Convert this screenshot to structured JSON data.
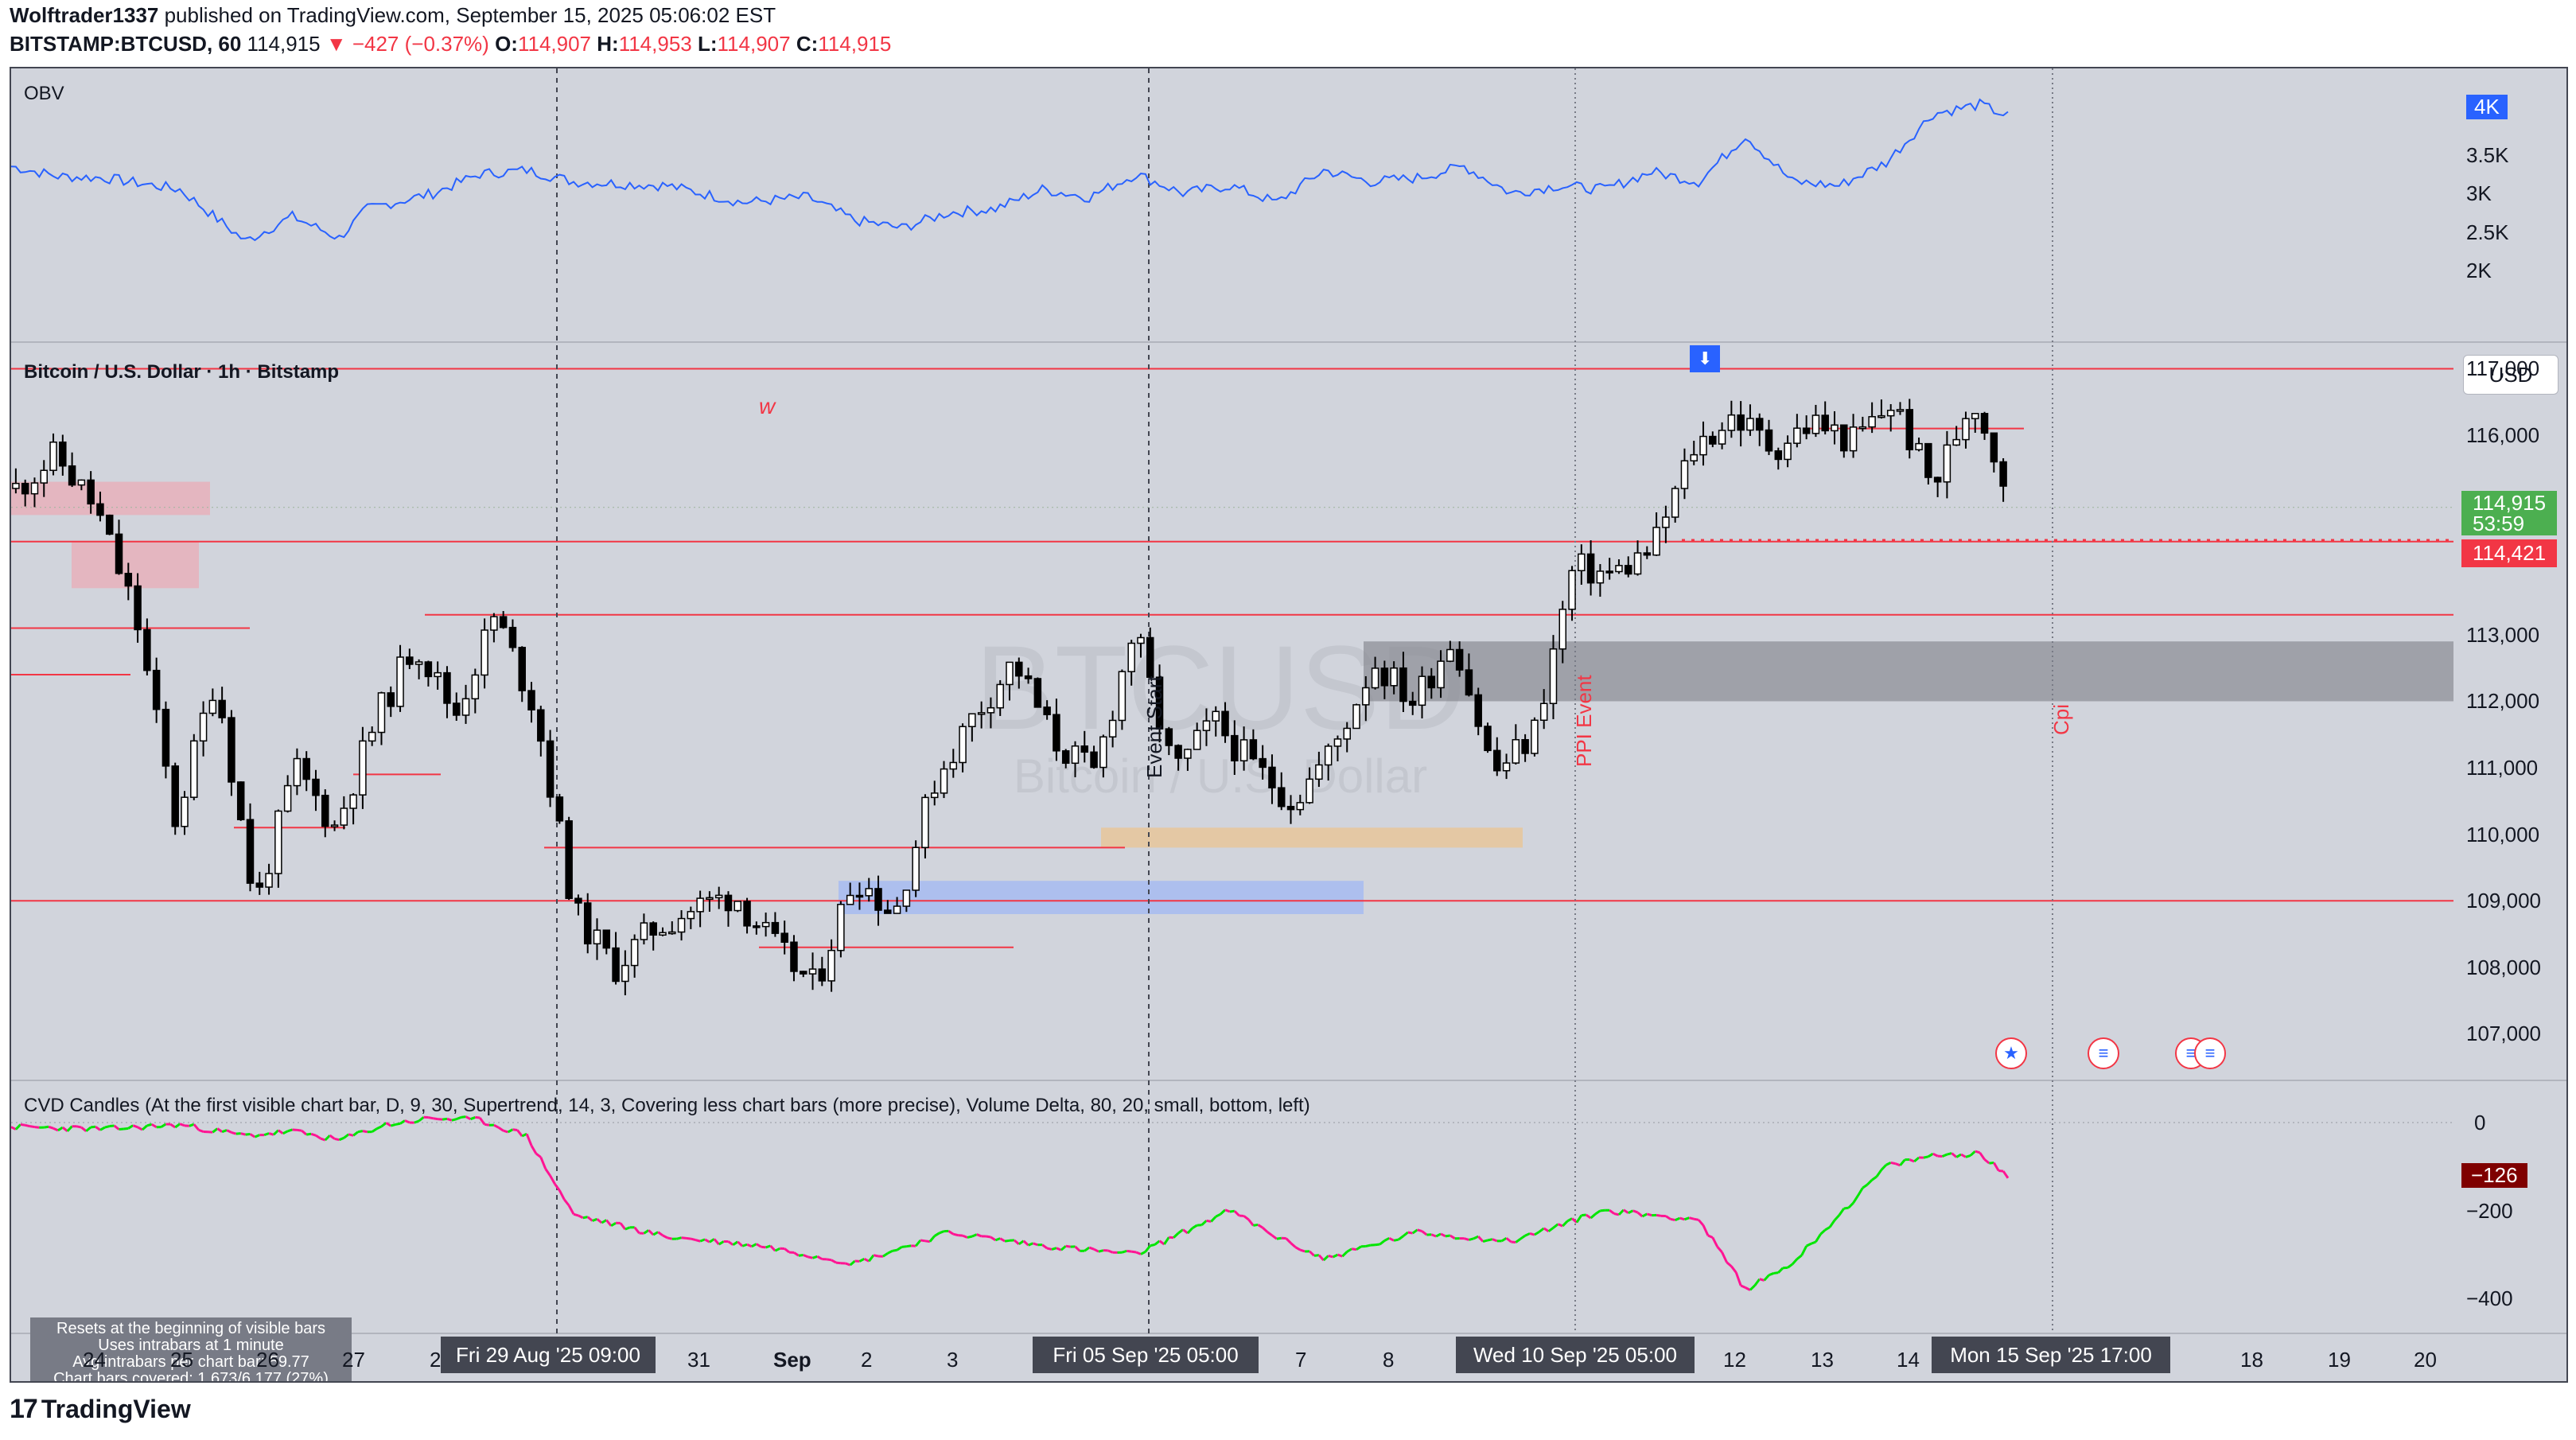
{
  "header": {
    "author": "Wolftrader1337",
    "published_text": " published on TradingView.com, September 15, 2025 05:06:02 EST",
    "symbol": "BITSTAMP:BTCUSD, 60",
    "last": "114,915",
    "down_arrow": "▼",
    "change": "−427 (−0.37%)",
    "o_label": "O:",
    "o_value": "114,907",
    "h_label": "H:",
    "h_value": "114,953",
    "l_label": "L:",
    "l_value": "114,907",
    "c_label": "C:",
    "c_value": "114,915"
  },
  "panes": {
    "obv_title": "OBV",
    "price_title": "Bitcoin / U.S. Dollar · 1h · Bitstamp",
    "cvd_title": "CVD Candles (At the first visible chart bar, D, 9, 30, Supertrend, 14, 3, Covering less chart bars (more precise), Volume Delta, 80, 20, small, bottom, left)",
    "currency": "USD"
  },
  "obv_axis": [
    "4K",
    "3.5K",
    "3K",
    "2.5K",
    "2K"
  ],
  "price_axis": [
    "117,000",
    "116,000",
    "114,915",
    "53:59",
    "114,421",
    "113,000",
    "112,000",
    "111,000",
    "110,000",
    "109,000",
    "108,000",
    "107,000"
  ],
  "cvd_axis": [
    "0",
    "−126",
    "−200",
    "−400"
  ],
  "annotations": {
    "w_label": "w",
    "event_label": "Event Start",
    "ppi_label": "PPI Event",
    "cpi_label": "Cpi",
    "watermark_symbol": "BTCUSD",
    "watermark_name": "Bitcoin / U.S. Dollar"
  },
  "info_box": [
    "Resets at the beginning of visible bars",
    "Uses intrabars at 1 minute",
    "Avg intrabars per chart bar: 59.77",
    "Chart bars covered: 1,673/6,177 (27%)"
  ],
  "time_axis": {
    "labels": [
      "24",
      "25",
      "26",
      "27",
      "28",
      "31",
      "Sep",
      "2",
      "3",
      "7",
      "8",
      "12",
      "13",
      "14",
      "18",
      "19",
      "20"
    ],
    "pills": [
      "Fri 29 Aug '25   09:00",
      "Fri 05 Sep '25   05:00",
      "Wed 10 Sep '25   05:00",
      "Mon 15 Sep '25   17:00"
    ]
  },
  "footer": {
    "brand": "TradingView",
    "logo": "17"
  },
  "colors": {
    "bg": "#d1d4dc",
    "obv_line": "#2962ff",
    "level_red": "#f23645",
    "up_green": "#00e600",
    "down_pink": "#ff1493",
    "badge_blue": "#2962ff",
    "badge_green": "#4caf50",
    "badge_red": "#f23645",
    "badge_darkred": "#7f0000"
  },
  "chart_data": [
    {
      "type": "line",
      "name": "OBV",
      "title": "OBV",
      "ylim": [
        2000,
        4000
      ],
      "x_range": [
        "Aug 23 '25",
        "Sep 15 '25"
      ],
      "series": [
        {
          "name": "OBV",
          "x": [
            0,
            5,
            10,
            18,
            25,
            30,
            35,
            38,
            45,
            50,
            55,
            60,
            70,
            78,
            85,
            90,
            95,
            100,
            105,
            110,
            115,
            120,
            125,
            130,
            135,
            140,
            145,
            150,
            155,
            160,
            165,
            170,
            175,
            180,
            185,
            190,
            195,
            200,
            205,
            210,
            213
          ],
          "values": [
            3350,
            3220,
            3200,
            3050,
            2380,
            2700,
            2420,
            2800,
            3000,
            3250,
            3300,
            3150,
            3100,
            2880,
            2950,
            2650,
            2550,
            2750,
            2800,
            3050,
            2950,
            3250,
            3000,
            3100,
            2880,
            3300,
            3150,
            3200,
            3350,
            3000,
            3100,
            3050,
            3280,
            3150,
            3750,
            3150,
            3100,
            3400,
            4030,
            4150,
            4000
          ]
        }
      ]
    },
    {
      "type": "candlestick",
      "name": "BTCUSD 1h",
      "title": "Bitcoin / U.S. Dollar · 1h · Bitstamp",
      "ylim": [
        106300,
        117400
      ],
      "x_range": [
        "Aug 23 '25",
        "Sep 15 '25"
      ],
      "closes_path": [
        115200,
        115700,
        114900,
        113300,
        110200,
        112400,
        108900,
        111000,
        110100,
        111700,
        112900,
        111800,
        113300,
        111900,
        108800,
        108000,
        108600,
        108900,
        109100,
        108300,
        107700,
        109400,
        108800,
        110800,
        111800,
        112600,
        111400,
        110900,
        113100,
        110900,
        111700,
        111000,
        110500,
        111300,
        112600,
        112000,
        113000,
        110900,
        111500,
        114000,
        113900,
        114300,
        115800,
        116300,
        115800,
        116200,
        115900,
        116500,
        115200,
        116600,
        115000
      ],
      "levels": [
        117000,
        114400,
        113300,
        109000,
        109800,
        108300
      ],
      "last": 114915,
      "last_label": "114,915",
      "marked_level": 114421,
      "zones": [
        {
          "name": "grey supply",
          "from": 112000,
          "to": 112900
        },
        {
          "name": "orange",
          "from": 109800,
          "to": 110100
        },
        {
          "name": "blue",
          "from": 108800,
          "to": 109300
        },
        {
          "name": "pink 1",
          "from": 114800,
          "to": 115300
        },
        {
          "name": "pink 2",
          "from": 113700,
          "to": 114400
        }
      ]
    },
    {
      "type": "line",
      "name": "CVD",
      "title": "CVD Candles",
      "ylim": [
        -480,
        30
      ],
      "x_range": [
        "Aug 23 '25",
        "Sep 15 '25"
      ],
      "series": [
        {
          "name": "CVD",
          "x": [
            0,
            10,
            18,
            25,
            30,
            35,
            40,
            45,
            50,
            55,
            60,
            70,
            80,
            90,
            100,
            110,
            120,
            130,
            135,
            140,
            150,
            160,
            170,
            180,
            185,
            190,
            200,
            205,
            210,
            213
          ],
          "values": [
            -10,
            -15,
            -5,
            -30,
            -20,
            -40,
            -5,
            10,
            5,
            -30,
            -210,
            -260,
            -280,
            -320,
            -250,
            -280,
            -300,
            -200,
            -260,
            -310,
            -250,
            -270,
            -200,
            -220,
            -380,
            -320,
            -100,
            -75,
            -70,
            -126
          ]
        }
      ],
      "last": -126,
      "last_label": "−126"
    }
  ]
}
